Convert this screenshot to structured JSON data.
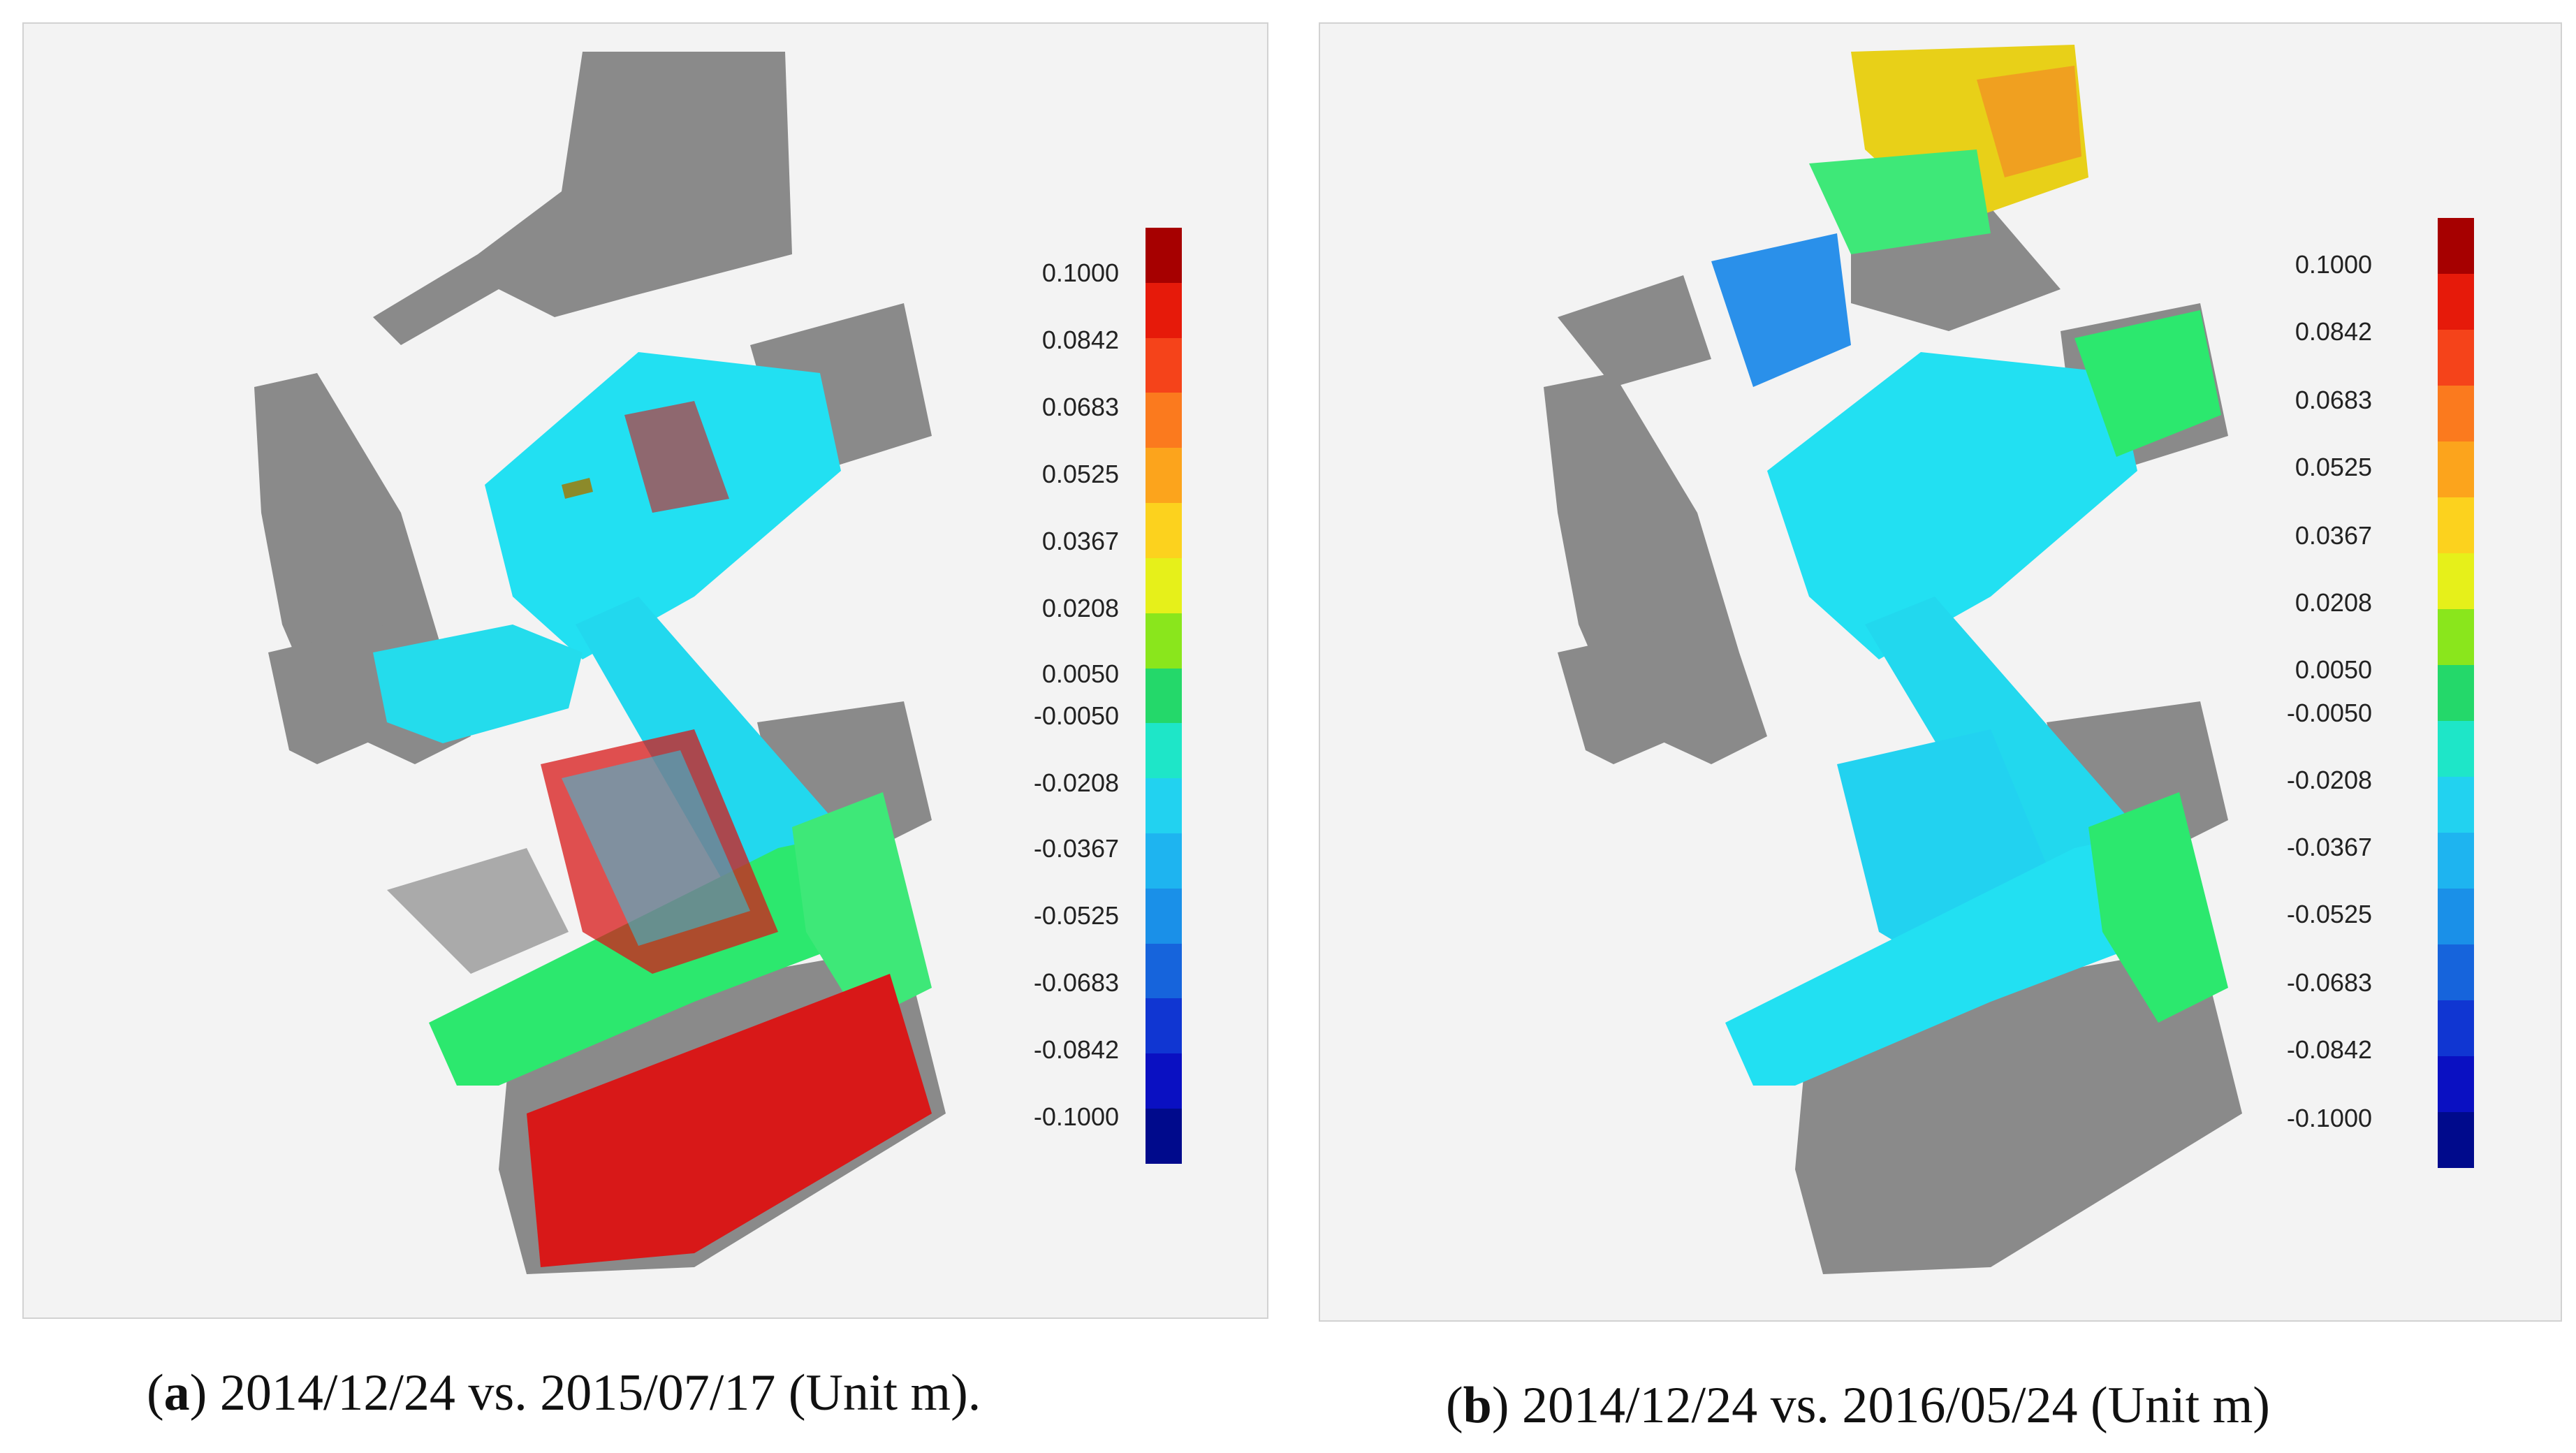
{
  "panels": [
    {
      "id": "a",
      "caption": {
        "letter": "a",
        "text": " 2014/12/24 vs. 2015/07/17 (Unit m)."
      },
      "colorbar_ticks": [
        "0.1000",
        "0.0842",
        "0.0683",
        "0.0525",
        "0.0367",
        "0.0208",
        "0.0050",
        "-0.0050",
        "-0.0208",
        "-0.0367",
        "-0.0525",
        "-0.0683",
        "-0.0842",
        "-0.1000"
      ]
    },
    {
      "id": "b",
      "caption": {
        "letter": "b",
        "text": " 2014/12/24 vs. 2016/05/24 (Unit m)"
      },
      "colorbar_ticks": [
        "0.1000",
        "0.0842",
        "0.0683",
        "0.0525",
        "0.0367",
        "0.0208",
        "0.0050",
        "-0.0050",
        "-0.0208",
        "-0.0367",
        "-0.0525",
        "-0.0683",
        "-0.0842",
        "-0.1000"
      ]
    }
  ],
  "colorbar_colors": [
    "#a60000",
    "#e61a0a",
    "#f5431a",
    "#fb7a1e",
    "#fca41c",
    "#fcd21e",
    "#e6f01a",
    "#8ae61c",
    "#24d86a",
    "#1ee6c8",
    "#22d2f0",
    "#1eb4f0",
    "#1a90e8",
    "#1664dc",
    "#1036d2",
    "#0a10c2",
    "#000a8c"
  ],
  "map_colors": {
    "gray": "#8a8a8a",
    "cyan": "#22e0f2",
    "green": "#2ce86e",
    "red": "#d81818",
    "yellow": "#e8d018",
    "orange": "#f0a020",
    "blue": "#2a90ea",
    "olive": "#8c8a2a"
  }
}
